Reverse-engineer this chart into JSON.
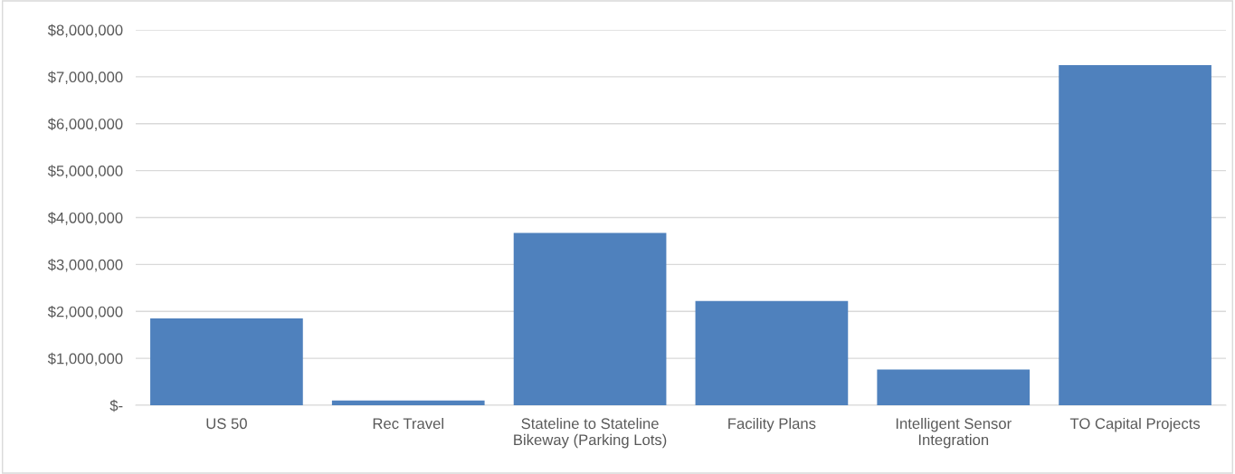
{
  "chart_data": {
    "type": "bar",
    "categories": [
      "US 50",
      "Rec Travel",
      "Stateline to Stateline Bikeway (Parking Lots)",
      "Facility Plans",
      "Intelligent Sensor Integration",
      "TO Capital Projects"
    ],
    "values": [
      1850000,
      100000,
      3670000,
      2220000,
      760000,
      7250000
    ],
    "color": "#4f81bd",
    "ylim": [
      0,
      8000000
    ],
    "yticks": [
      {
        "value": 0,
        "label": "$-"
      },
      {
        "value": 1000000,
        "label": "$1,000,000"
      },
      {
        "value": 2000000,
        "label": "$2,000,000"
      },
      {
        "value": 3000000,
        "label": "$3,000,000"
      },
      {
        "value": 4000000,
        "label": "$4,000,000"
      },
      {
        "value": 5000000,
        "label": "$5,000,000"
      },
      {
        "value": 6000000,
        "label": "$6,000,000"
      },
      {
        "value": 7000000,
        "label": "$7,000,000"
      },
      {
        "value": 8000000,
        "label": "$8,000,000"
      }
    ],
    "grid": "y"
  }
}
